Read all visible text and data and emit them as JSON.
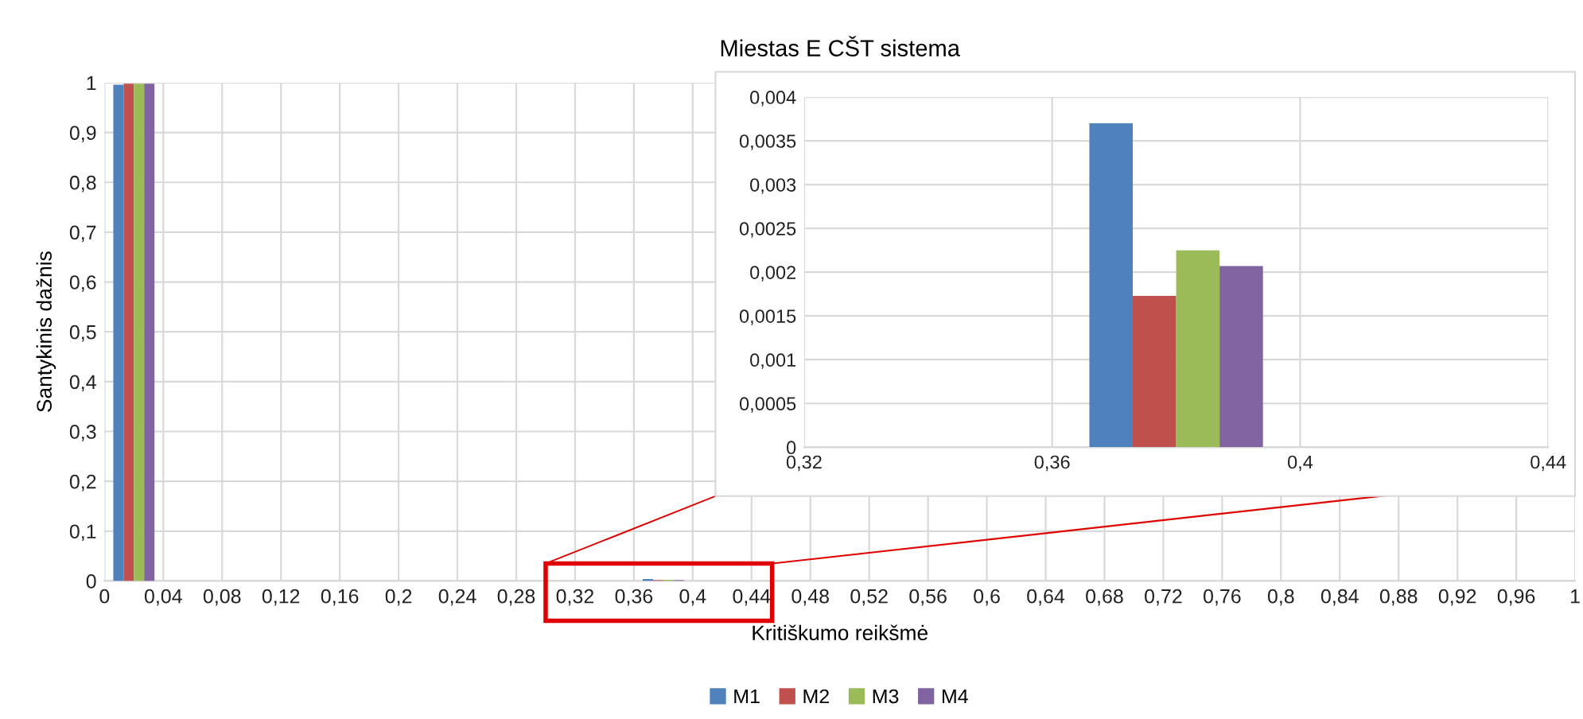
{
  "chart_data": [
    {
      "type": "histogram",
      "title": "Miestas E CŠT sistema",
      "xlabel": "Kritiškumo reikšmė",
      "ylabel": "Santykinis dažnis",
      "bins": [
        0,
        0.04,
        0.08,
        0.12,
        0.16,
        0.2,
        0.24,
        0.28,
        0.32,
        0.36,
        0.4,
        0.44,
        0.48,
        0.52,
        0.56,
        0.6,
        0.64,
        0.68,
        0.72,
        0.76,
        0.8,
        0.84,
        0.88,
        0.92,
        0.96,
        1
      ],
      "series": [
        {
          "name": "M1",
          "color": "#4f81bd",
          "values": [
            0.996,
            0,
            0,
            0,
            0,
            0,
            0,
            0,
            0,
            0.0037,
            0,
            0,
            0,
            0,
            0,
            0,
            0,
            0,
            0,
            0,
            0,
            0,
            0,
            0,
            0
          ]
        },
        {
          "name": "M2",
          "color": "#c0504d",
          "values": [
            0.998,
            0,
            0,
            0,
            0,
            0,
            0,
            0,
            0,
            0.00173,
            0,
            0,
            0,
            0,
            0,
            0,
            0,
            0,
            0,
            0,
            0,
            0,
            0,
            0,
            0
          ]
        },
        {
          "name": "M3",
          "color": "#9bbb59",
          "values": [
            0.998,
            0,
            0,
            0,
            0,
            0,
            0,
            0,
            0,
            0.00225,
            0,
            0,
            0,
            0,
            0,
            0,
            0,
            0,
            0,
            0,
            0,
            0,
            0,
            0,
            0
          ]
        },
        {
          "name": "M4",
          "color": "#8064a2",
          "values": [
            0.998,
            0,
            0,
            0,
            0,
            0,
            0,
            0,
            0,
            0.00207,
            0,
            0,
            0,
            0,
            0,
            0,
            0,
            0,
            0,
            0,
            0,
            0,
            0,
            0,
            0
          ]
        }
      ],
      "xlim": [
        0,
        1
      ],
      "xticks": [
        0,
        {
          "value": 0.04,
          "label": "0,04"
        },
        {
          "value": 0.08,
          "label": "0,08"
        },
        {
          "value": 0.12,
          "label": "0,12"
        },
        {
          "value": 0.16,
          "label": "0,16"
        },
        {
          "value": 0.2,
          "label": "0,2"
        },
        {
          "value": 0.24,
          "label": "0,24"
        },
        {
          "value": 0.28,
          "label": "0,28"
        },
        {
          "value": 0.32,
          "label": "0,32"
        },
        {
          "value": 0.36,
          "label": "0,36"
        },
        {
          "value": 0.4,
          "label": "0,4"
        },
        {
          "value": 0.44,
          "label": "0,44"
        },
        {
          "value": 0.48,
          "label": "0,48"
        },
        {
          "value": 0.52,
          "label": "0,52"
        },
        {
          "value": 0.56,
          "label": "0,56"
        },
        {
          "value": 0.6,
          "label": "0,6"
        },
        {
          "value": 0.64,
          "label": "0,64"
        },
        {
          "value": 0.68,
          "label": "0,68"
        },
        {
          "value": 0.72,
          "label": "0,72"
        },
        {
          "value": 0.76,
          "label": "0,76"
        },
        {
          "value": 0.8,
          "label": "0,8"
        },
        {
          "value": 0.84,
          "label": "0,84"
        },
        {
          "value": 0.88,
          "label": "0,88"
        },
        {
          "value": 0.92,
          "label": "0,92"
        },
        {
          "value": 0.96,
          "label": "0,96"
        },
        1
      ],
      "ylim": [
        0,
        1
      ],
      "yticks": [
        0,
        {
          "value": 0.1,
          "label": "0,1"
        },
        {
          "value": 0.2,
          "label": "0,2"
        },
        {
          "value": 0.3,
          "label": "0,3"
        },
        {
          "value": 0.4,
          "label": "0,4"
        },
        {
          "value": 0.5,
          "label": "0,5"
        },
        {
          "value": 0.6,
          "label": "0,6"
        },
        {
          "value": 0.7,
          "label": "0,7"
        },
        {
          "value": 0.8,
          "label": "0,8"
        },
        {
          "value": 0.9,
          "label": "0,9"
        },
        1
      ],
      "grid": true,
      "legend": "bottom"
    },
    {
      "type": "histogram",
      "bins": [
        0.32,
        0.36,
        0.4,
        0.44
      ],
      "series": [
        {
          "color": "#4f81bd",
          "values": [
            0,
            0.0037,
            0
          ]
        },
        {
          "color": "#c0504d",
          "values": [
            0,
            0.00173,
            0
          ]
        },
        {
          "color": "#9bbb59",
          "values": [
            0,
            0.00225,
            0
          ]
        },
        {
          "color": "#8064a2",
          "values": [
            0,
            0.00207,
            0
          ]
        }
      ],
      "xlim": [
        0.32,
        0.44
      ],
      "xticks": [
        {
          "value": 0.32,
          "label": "0,32"
        },
        {
          "value": 0.36,
          "label": "0,36"
        },
        {
          "value": 0.4,
          "label": "0,4"
        },
        {
          "value": 0.44,
          "label": "0,44"
        }
      ],
      "ylim": [
        0,
        0.004
      ],
      "yticks": [
        0,
        {
          "value": 0.0005,
          "label": "0,0005"
        },
        {
          "value": 0.001,
          "label": "0,001"
        },
        {
          "value": 0.0015,
          "label": "0,0015"
        },
        {
          "value": 0.002,
          "label": "0,002"
        },
        {
          "value": 0.0025,
          "label": "0,0025"
        },
        {
          "value": 0.003,
          "label": "0,003"
        },
        {
          "value": 0.0035,
          "label": "0,0035"
        },
        {
          "value": 0.004,
          "label": "0,004"
        }
      ],
      "grid": true
    }
  ]
}
